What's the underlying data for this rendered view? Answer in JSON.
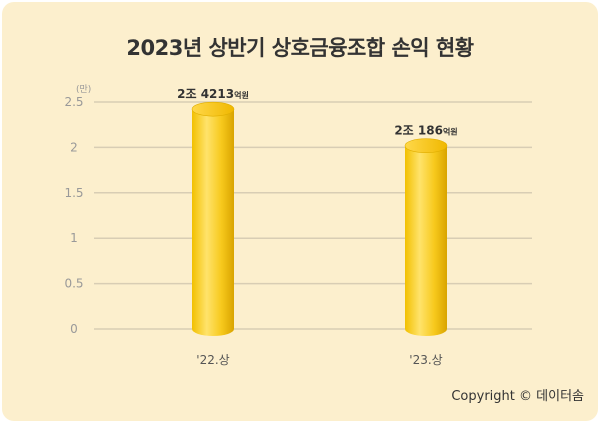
{
  "title": "2023년 상반기 상호금융조합 손익 현황",
  "unit": "(만)",
  "copyright": "Copyright © 데이터솜",
  "colors": {
    "background": "#fcefcd",
    "bar_light": "#ffe066",
    "bar_main": "#f5c518",
    "bar_dark": "#d9a400",
    "gridline": "#d8cdb4",
    "tick_text": "#999999"
  },
  "chart_data": {
    "type": "bar",
    "categories": [
      "'22.상",
      "'23.상"
    ],
    "values": [
      2.4213,
      2.0186
    ],
    "data_labels": [
      {
        "main": "2조 4213",
        "unit": "억원"
      },
      {
        "main": "2조 186",
        "unit": "억원"
      }
    ],
    "yticks": [
      "0",
      "0.5",
      "1",
      "1.5",
      "2",
      "2.5"
    ],
    "ylim": [
      0,
      2.5
    ],
    "grid": true
  }
}
